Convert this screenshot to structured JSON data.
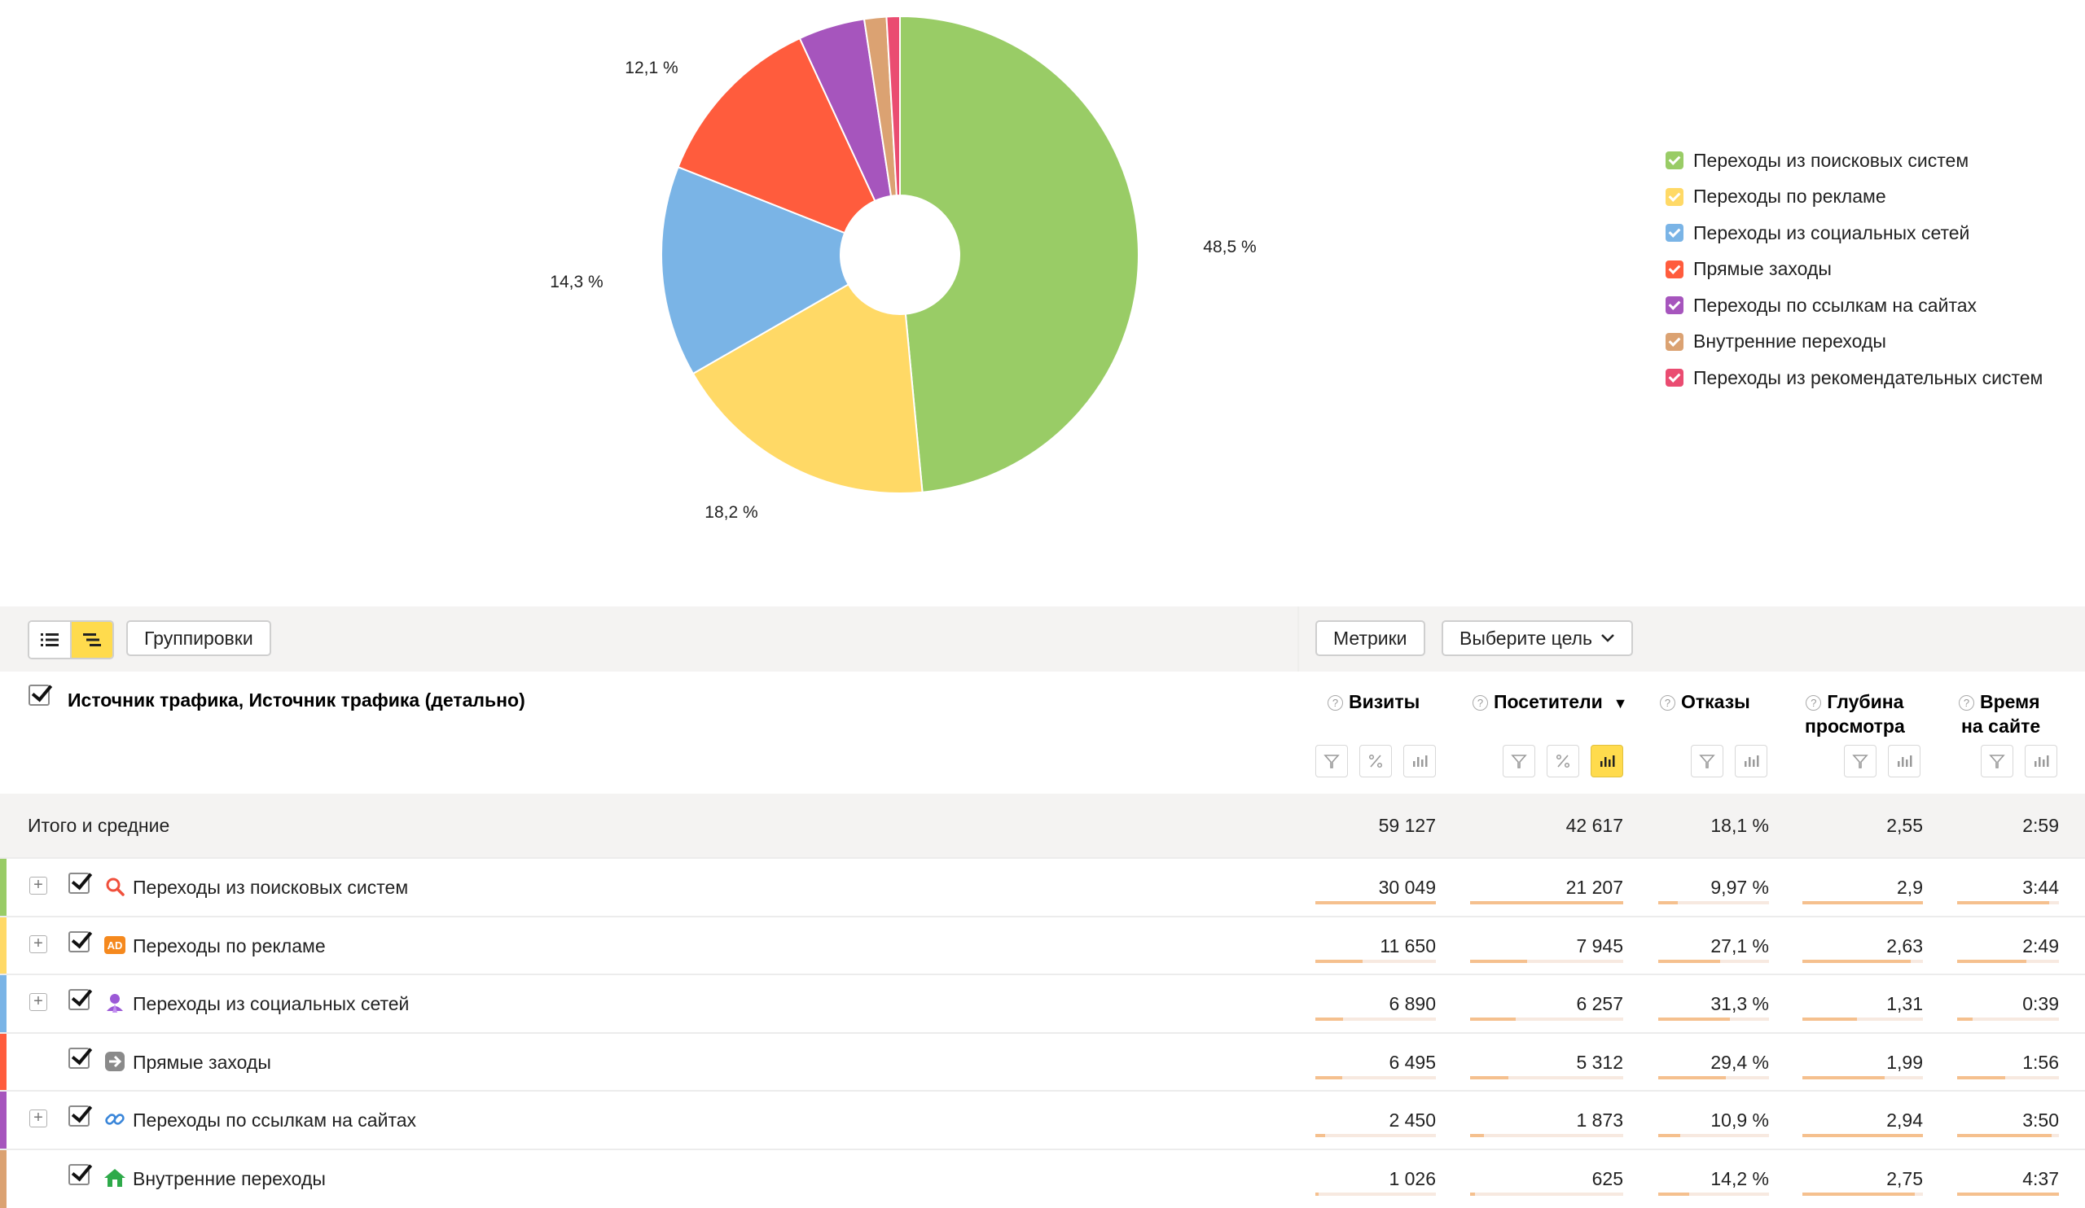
{
  "chart_data": {
    "type": "pie",
    "donut": true,
    "slices": [
      {
        "name": "Переходы из поисковых систем",
        "value": 48.5,
        "label": "48,5 %",
        "color": "#99cc66"
      },
      {
        "name": "Переходы по рекламе",
        "value": 18.2,
        "label": "18,2 %",
        "color": "#ffd966"
      },
      {
        "name": "Переходы из социальных сетей",
        "value": 14.3,
        "label": "14,3 %",
        "color": "#7ab4e6"
      },
      {
        "name": "Прямые заходы",
        "value": 12.1,
        "label": "12,1 %",
        "color": "#ff5c3d"
      },
      {
        "name": "Переходы по ссылкам на сайтах",
        "value": 4.5,
        "label": "",
        "color": "#a655bd"
      },
      {
        "name": "Внутренние переходы",
        "value": 1.5,
        "label": "",
        "color": "#dba272"
      },
      {
        "name": "Переходы из рекомендательных систем",
        "value": 0.9,
        "label": "",
        "color": "#ea4c71"
      }
    ],
    "legend_position": "right"
  },
  "toolbar": {
    "list_view_icon": "list-icon",
    "tree_view_icon": "tree-icon",
    "groupings_label": "Группировки",
    "metrics_label": "Метрики",
    "goal_label": "Выберите цель"
  },
  "table": {
    "dimension_title": "Источник трафика, Источник трафика (детально)",
    "columns": [
      {
        "line1": "Визиты",
        "line2": ""
      },
      {
        "line1": "Посетители",
        "line2": "",
        "sort": "▼"
      },
      {
        "line1": "Отказы",
        "line2": ""
      },
      {
        "line1": "Глубина",
        "line2": "просмотра"
      },
      {
        "line1": "Время",
        "line2": "на сайте"
      }
    ],
    "totals": {
      "label": "Итого и средние",
      "values": [
        "59 127",
        "42 617",
        "18,1 %",
        "2,55",
        "2:59"
      ]
    },
    "rows": [
      {
        "label": "Переходы из поисковых систем",
        "color": "#99cc66",
        "icon": "search-icon",
        "expandable": true,
        "values": [
          "30 049",
          "21 207",
          "9,97 %",
          "2,9",
          "3:44"
        ],
        "bars": [
          1.0,
          1.0,
          0.18,
          1.0,
          0.9
        ]
      },
      {
        "label": "Переходы по рекламе",
        "color": "#ffd966",
        "icon": "ad-icon",
        "expandable": true,
        "values": [
          "11 650",
          "7 945",
          "27,1 %",
          "2,63",
          "2:49"
        ],
        "bars": [
          0.39,
          0.37,
          0.56,
          0.9,
          0.68
        ]
      },
      {
        "label": "Переходы из социальных сетей",
        "color": "#7ab4e6",
        "icon": "social-icon",
        "expandable": true,
        "values": [
          "6 890",
          "6 257",
          "31,3 %",
          "1,31",
          "0:39"
        ],
        "bars": [
          0.23,
          0.3,
          0.65,
          0.45,
          0.15
        ]
      },
      {
        "label": "Прямые заходы",
        "color": "#ff5c3d",
        "icon": "direct-icon",
        "expandable": false,
        "values": [
          "6 495",
          "5 312",
          "29,4 %",
          "1,99",
          "1:56"
        ],
        "bars": [
          0.22,
          0.25,
          0.61,
          0.68,
          0.47
        ]
      },
      {
        "label": "Переходы по ссылкам на сайтах",
        "color": "#a655bd",
        "icon": "link-icon",
        "expandable": true,
        "values": [
          "2 450",
          "1 873",
          "10,9 %",
          "2,94",
          "3:50"
        ],
        "bars": [
          0.08,
          0.09,
          0.2,
          1.0,
          0.93
        ]
      },
      {
        "label": "Внутренние переходы",
        "color": "#dba272",
        "icon": "home-icon",
        "expandable": false,
        "values": [
          "1 026",
          "625",
          "14,2 %",
          "2,75",
          "4:37"
        ],
        "bars": [
          0.03,
          0.03,
          0.28,
          0.93,
          1.0
        ]
      }
    ]
  }
}
